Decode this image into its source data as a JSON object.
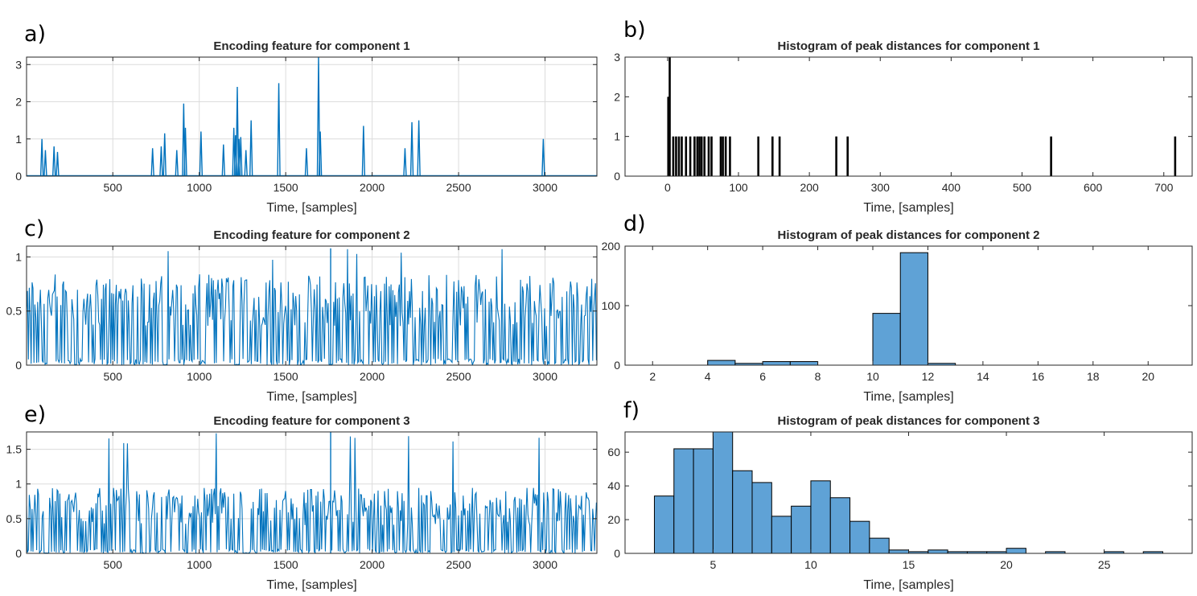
{
  "colors": {
    "signal": "#0072BD",
    "hist_fill": "#5FA2D6",
    "stem": "#000000",
    "grid": "#dcdcdc",
    "axis": "#262626"
  },
  "chart_data": [
    {
      "panel": "a)",
      "type": "line",
      "title": "Encoding feature for component 1",
      "xlabel": "Time, [samples]",
      "ylabel": "",
      "xlim": [
        1,
        3300
      ],
      "ylim": [
        0,
        3.2
      ],
      "xticks": [
        500,
        1000,
        1500,
        2000,
        2500,
        3000
      ],
      "yticks": [
        0,
        1,
        2,
        3
      ],
      "grid": true,
      "color": "#0072BD",
      "spikes": [
        [
          90,
          1.0
        ],
        [
          110,
          0.7
        ],
        [
          160,
          0.8
        ],
        [
          180,
          0.65
        ],
        [
          730,
          0.75
        ],
        [
          780,
          0.8
        ],
        [
          800,
          1.15
        ],
        [
          870,
          0.7
        ],
        [
          910,
          1.95
        ],
        [
          920,
          1.3
        ],
        [
          1010,
          1.2
        ],
        [
          1140,
          0.85
        ],
        [
          1200,
          1.3
        ],
        [
          1210,
          1.1
        ],
        [
          1220,
          2.4
        ],
        [
          1230,
          1.0
        ],
        [
          1240,
          1.05
        ],
        [
          1270,
          0.7
        ],
        [
          1300,
          1.5
        ],
        [
          1460,
          2.5
        ],
        [
          1620,
          0.75
        ],
        [
          1690,
          3.2
        ],
        [
          1700,
          1.2
        ],
        [
          1950,
          1.35
        ],
        [
          2190,
          0.75
        ],
        [
          2230,
          1.45
        ],
        [
          2270,
          1.5
        ],
        [
          2990,
          1.0
        ]
      ]
    },
    {
      "panel": "b)",
      "type": "bar",
      "title": "Histogram of peak distances for component 1",
      "xlabel": "Time, [samples]",
      "ylabel": "",
      "xlim": [
        -60,
        740
      ],
      "ylim": [
        0,
        3
      ],
      "xticks": [
        0,
        100,
        200,
        300,
        400,
        500,
        600,
        700
      ],
      "yticks": [
        0,
        1,
        2,
        3
      ],
      "grid": false,
      "color": "#000000",
      "x": [
        1,
        3,
        8,
        12,
        16,
        20,
        26,
        32,
        38,
        42,
        45,
        48,
        52,
        58,
        62,
        75,
        78,
        82,
        88,
        128,
        148,
        158,
        238,
        254,
        541,
        716
      ],
      "values": [
        2,
        3,
        1,
        1,
        1,
        1,
        1,
        1,
        1,
        1,
        1,
        1,
        1,
        1,
        1,
        1,
        1,
        1,
        1,
        1,
        1,
        1,
        1,
        1,
        1,
        1
      ]
    },
    {
      "panel": "c)",
      "type": "line",
      "title": "Encoding feature for component 2",
      "xlabel": "Time, [samples]",
      "ylabel": "",
      "xlim": [
        1,
        3300
      ],
      "ylim": [
        0,
        1.1
      ],
      "xticks": [
        500,
        1000,
        1500,
        2000,
        2500,
        3000
      ],
      "yticks": [
        0,
        0.5,
        1
      ],
      "grid": true,
      "color": "#0072BD",
      "dense": {
        "period": 11,
        "mean_peak": 0.8,
        "max_peak": 1.08,
        "gaps": [
          800,
          1220,
          1760
        ]
      }
    },
    {
      "panel": "d)",
      "type": "bar",
      "title": "Histogram of peak distances for component 2",
      "xlabel": "Time, [samples]",
      "ylabel": "",
      "xlim": [
        1,
        21.6
      ],
      "ylim": [
        0,
        200
      ],
      "xticks": [
        2,
        4,
        6,
        8,
        10,
        12,
        14,
        16,
        18,
        20
      ],
      "yticks": [
        0,
        100,
        200
      ],
      "grid": false,
      "color": "#5FA2D6",
      "bin_edges": [
        2,
        3,
        4,
        5,
        6,
        7,
        8,
        9,
        10,
        11,
        12,
        13
      ],
      "values": [
        0,
        0,
        8,
        3,
        6,
        6,
        0,
        0,
        87,
        189,
        3
      ]
    },
    {
      "panel": "e)",
      "type": "line",
      "title": "Encoding feature for component 3",
      "xlabel": "Time, [samples]",
      "ylabel": "",
      "xlim": [
        1,
        3300
      ],
      "ylim": [
        0,
        1.75
      ],
      "xticks": [
        500,
        1000,
        1500,
        2000,
        2500,
        3000
      ],
      "yticks": [
        0,
        0.5,
        1,
        1.5
      ],
      "grid": true,
      "color": "#0072BD",
      "dense": {
        "period": 6,
        "mean_peak": 0.9,
        "max_peak": 1.75,
        "gaps": [
          120,
          680,
          1260,
          1280
        ]
      }
    },
    {
      "panel": "f)",
      "type": "bar",
      "title": "Histogram of peak distances for component 3",
      "xlabel": "Time, [samples]",
      "ylabel": "",
      "xlim": [
        0.5,
        29.5
      ],
      "ylim": [
        0,
        72
      ],
      "xticks": [
        5,
        10,
        15,
        20,
        25
      ],
      "yticks": [
        0,
        20,
        40,
        60
      ],
      "grid": false,
      "color": "#5FA2D6",
      "bin_edges": [
        2,
        3,
        4,
        5,
        6,
        7,
        8,
        9,
        10,
        11,
        12,
        13,
        14,
        15,
        16,
        17,
        18,
        19,
        20,
        21,
        22,
        23,
        24,
        25,
        26,
        27,
        28
      ],
      "values": [
        34,
        62,
        62,
        72,
        49,
        42,
        22,
        28,
        43,
        33,
        19,
        9,
        2,
        1,
        2,
        1,
        1,
        1,
        3,
        0,
        1,
        0,
        0,
        1,
        0,
        1
      ]
    }
  ]
}
